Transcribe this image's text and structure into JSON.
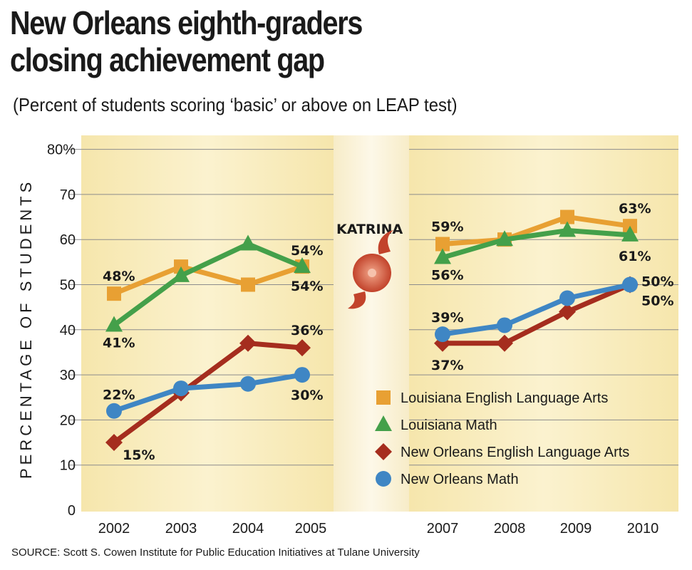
{
  "title_line1": "New Orleans eighth-graders",
  "title_line2": "closing achievement gap",
  "subtitle": "(Percent of students scoring ‘basic’ or above on LEAP test)",
  "source": "SOURCE: Scott S. Cowen Institute for Public Education Initiatives at Tulane University",
  "chart_data": {
    "type": "line",
    "ylabel": "PERCENTAGE OF STUDENTS",
    "ylim": [
      0,
      80
    ],
    "yticks": [
      "0",
      "10",
      "20",
      "30",
      "40",
      "50",
      "60",
      "70",
      "80%"
    ],
    "grid": true,
    "legend_position": "bottom-right",
    "categories": [
      "2002",
      "2003",
      "2004",
      "2005",
      "2007",
      "2008",
      "2009",
      "2010"
    ],
    "annotation": "KATRINA",
    "series": [
      {
        "name": "Louisiana English Language Arts",
        "color": "#e8a033",
        "marker": "square",
        "values": [
          48,
          54,
          50,
          54,
          59,
          60,
          65,
          63
        ],
        "labels": [
          "48%",
          "",
          "",
          "54%",
          "59%",
          "",
          "",
          "63%"
        ]
      },
      {
        "name": "Louisiana Math",
        "color": "#44a04a",
        "marker": "triangle",
        "values": [
          41,
          52,
          59,
          54,
          56,
          60,
          62,
          61
        ],
        "labels": [
          "41%",
          "",
          "",
          "54%",
          "56%",
          "",
          "",
          "61%"
        ]
      },
      {
        "name": "New Orleans English Language Arts",
        "color": "#a52d1e",
        "marker": "diamond",
        "values": [
          15,
          26,
          37,
          36,
          37,
          37,
          44,
          50
        ],
        "labels": [
          "15%",
          "",
          "",
          "36%",
          "37%",
          "",
          "",
          "50%"
        ]
      },
      {
        "name": "New Orleans Math",
        "color": "#3f86c4",
        "marker": "circle",
        "values": [
          22,
          27,
          28,
          30,
          39,
          41,
          47,
          50
        ],
        "labels": [
          "22%",
          "",
          "",
          "30%",
          "39%",
          "",
          "",
          "50%"
        ]
      }
    ]
  }
}
